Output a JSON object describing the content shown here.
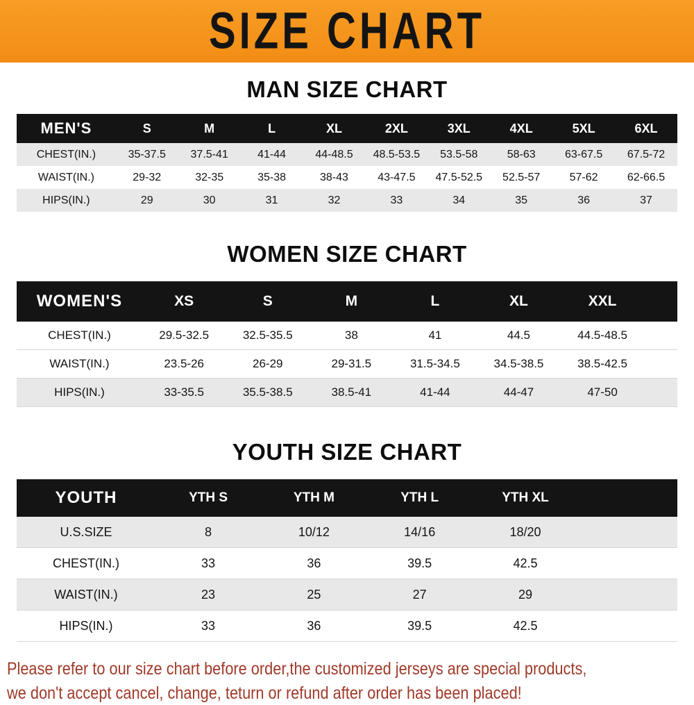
{
  "banner": {
    "title": "SIZE CHART"
  },
  "colors": {
    "banner_bg": "#F7941E",
    "table_header_bg": "#141414",
    "row_shade": "#E8E8E8",
    "notice_text": "#A03A29"
  },
  "men": {
    "title": "MAN SIZE CHART",
    "header_label": "MEN'S",
    "columns": [
      "S",
      "M",
      "L",
      "XL",
      "2XL",
      "3XL",
      "4XL",
      "5XL",
      "6XL"
    ],
    "rows": [
      {
        "label": "CHEST(IN.)",
        "values": [
          "35-37.5",
          "37.5-41",
          "41-44",
          "44-48.5",
          "48.5-53.5",
          "53.5-58",
          "58-63",
          "63-67.5",
          "67.5-72"
        ]
      },
      {
        "label": "WAIST(IN.)",
        "values": [
          "29-32",
          "32-35",
          "35-38",
          "38-43",
          "43-47.5",
          "47.5-52.5",
          "52.5-57",
          "57-62",
          "62-66.5"
        ]
      },
      {
        "label": "HIPS(IN.)",
        "values": [
          "29",
          "30",
          "31",
          "32",
          "33",
          "34",
          "35",
          "36",
          "37"
        ]
      }
    ]
  },
  "women": {
    "title": "WOMEN SIZE CHART",
    "header_label": "WOMEN'S",
    "columns": [
      "XS",
      "S",
      "M",
      "L",
      "XL",
      "XXL"
    ],
    "rows": [
      {
        "label": "CHEST(IN.)",
        "values": [
          "29.5-32.5",
          "32.5-35.5",
          "38",
          "41",
          "44.5",
          "44.5-48.5"
        ]
      },
      {
        "label": "WAIST(IN.)",
        "values": [
          "23.5-26",
          "26-29",
          "29-31.5",
          "31.5-34.5",
          "34.5-38.5",
          "38.5-42.5"
        ]
      },
      {
        "label": "HIPS(IN.)",
        "values": [
          "33-35.5",
          "35.5-38.5",
          "38.5-41",
          "41-44",
          "44-47",
          "47-50"
        ]
      }
    ]
  },
  "youth": {
    "title": "YOUTH SIZE CHART",
    "header_label": "YOUTH",
    "columns": [
      "YTH S",
      "YTH M",
      "YTH L",
      "YTH XL"
    ],
    "rows": [
      {
        "label": "U.S.SIZE",
        "values": [
          "8",
          "10/12",
          "14/16",
          "18/20"
        ]
      },
      {
        "label": "CHEST(IN.)",
        "values": [
          "33",
          "36",
          "39.5",
          "42.5"
        ]
      },
      {
        "label": "WAIST(IN.)",
        "values": [
          "23",
          "25",
          "27",
          "29"
        ]
      },
      {
        "label": "HIPS(IN.)",
        "values": [
          "33",
          "36",
          "39.5",
          "42.5"
        ]
      }
    ]
  },
  "footer": {
    "line1": "Please refer to our size chart before order,the customized jerseys are special products,",
    "line2": "we don't accept cancel, change, teturn or refund after order has been placed!"
  }
}
